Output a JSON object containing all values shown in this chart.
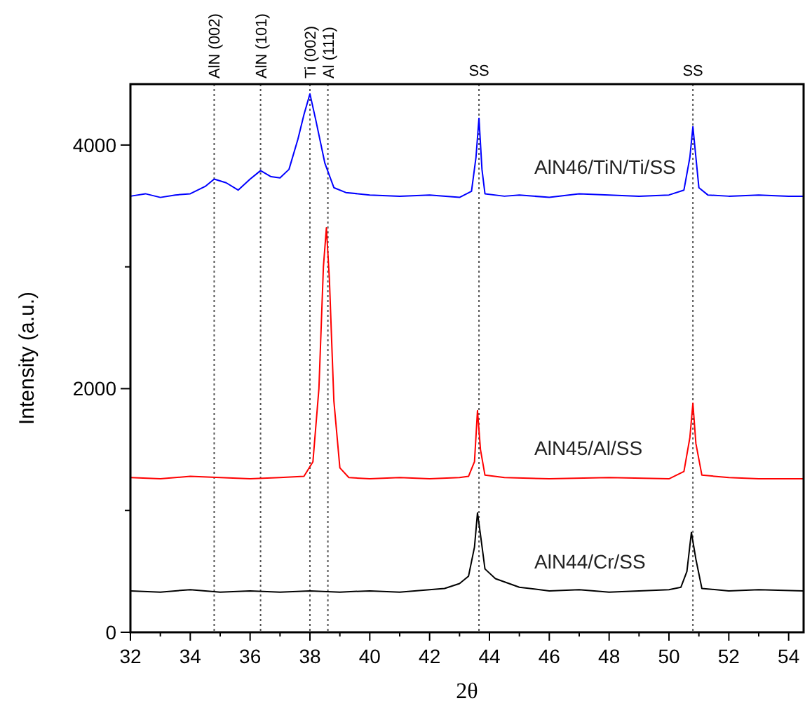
{
  "chart_data": {
    "type": "line",
    "xlabel": "2θ",
    "ylabel": "Intensity (a.u.)",
    "xlim": [
      32,
      54.5
    ],
    "ylim": [
      0,
      4500
    ],
    "xticks": [
      32,
      {
        "value": 33,
        "label": null
      },
      34,
      {
        "value": 35,
        "label": null
      },
      36,
      {
        "value": 37,
        "label": null
      },
      38,
      {
        "value": 39,
        "label": null
      },
      40,
      {
        "value": 41,
        "label": null
      },
      42,
      {
        "value": 43,
        "label": null
      },
      44,
      {
        "value": 45,
        "label": null
      },
      46,
      {
        "value": 47,
        "label": null
      },
      48,
      {
        "value": 49,
        "label": null
      },
      50,
      {
        "value": 51,
        "label": null
      },
      52,
      {
        "value": 53,
        "label": null
      },
      54
    ],
    "yticks": [
      0,
      {
        "value": 1000,
        "label": null
      },
      2000,
      {
        "value": 3000,
        "label": null
      },
      4000
    ],
    "grid": false,
    "marker": "none",
    "line_style": "solid",
    "ref_lines": [
      {
        "axis": "x",
        "value": 34.8,
        "label": "AlN (002)"
      },
      {
        "axis": "x",
        "value": 36.35,
        "label": "AlN (101)"
      },
      {
        "axis": "x",
        "value": 38.0,
        "label": "Ti (002)"
      },
      {
        "axis": "x",
        "value": 38.6,
        "label": "Al (111)"
      },
      {
        "axis": "x",
        "value": 43.65,
        "label": "SS"
      },
      {
        "axis": "x",
        "value": 50.8,
        "label": "SS"
      }
    ],
    "series": [
      {
        "name": "AlN46/TiN/Ti/SS",
        "color": "#0000ff",
        "x": [
          32,
          32.5,
          33,
          33.5,
          34,
          34.5,
          34.8,
          35.2,
          35.6,
          36,
          36.35,
          36.7,
          37,
          37.3,
          37.6,
          37.8,
          38,
          38.2,
          38.5,
          38.8,
          39.2,
          40,
          41,
          42,
          43,
          43.4,
          43.55,
          43.65,
          43.75,
          43.85,
          44.5,
          45,
          46,
          47,
          48,
          49,
          50,
          50.5,
          50.7,
          50.8,
          50.9,
          51,
          51.3,
          52,
          53,
          54,
          54.5
        ],
        "values": [
          3580,
          3600,
          3570,
          3590,
          3600,
          3660,
          3720,
          3690,
          3630,
          3720,
          3790,
          3740,
          3730,
          3800,
          4050,
          4250,
          4420,
          4200,
          3850,
          3650,
          3610,
          3590,
          3580,
          3590,
          3570,
          3620,
          3900,
          4220,
          3800,
          3600,
          3580,
          3590,
          3570,
          3600,
          3590,
          3580,
          3590,
          3630,
          3900,
          4150,
          3900,
          3650,
          3590,
          3580,
          3590,
          3580,
          3580
        ]
      },
      {
        "name": "AlN45/Al/SS",
        "color": "#ff0000",
        "x": [
          32,
          33,
          34,
          35,
          36,
          37,
          37.8,
          38.1,
          38.3,
          38.45,
          38.55,
          38.65,
          38.8,
          39,
          39.3,
          40,
          41,
          42,
          43,
          43.3,
          43.5,
          43.6,
          43.7,
          43.85,
          44.5,
          46,
          48,
          50,
          50.5,
          50.7,
          50.8,
          50.9,
          51.1,
          52,
          53,
          54.5
        ],
        "values": [
          1270,
          1260,
          1280,
          1270,
          1260,
          1270,
          1280,
          1400,
          2000,
          3000,
          3320,
          2900,
          1900,
          1350,
          1270,
          1260,
          1270,
          1260,
          1270,
          1280,
          1400,
          1820,
          1500,
          1290,
          1270,
          1260,
          1270,
          1260,
          1320,
          1600,
          1880,
          1550,
          1290,
          1270,
          1260,
          1260
        ]
      },
      {
        "name": "AlN44/Cr/SS",
        "color": "#000000",
        "x": [
          32,
          33,
          34,
          35,
          36,
          37,
          38,
          39,
          40,
          41,
          42,
          42.5,
          43,
          43.3,
          43.5,
          43.6,
          43.7,
          43.85,
          44.2,
          45,
          46,
          47,
          48,
          49,
          50,
          50.4,
          50.6,
          50.75,
          50.9,
          51.1,
          52,
          53,
          54.5
        ],
        "values": [
          340,
          330,
          350,
          330,
          340,
          330,
          340,
          330,
          340,
          330,
          350,
          360,
          400,
          460,
          700,
          980,
          800,
          520,
          440,
          370,
          340,
          350,
          330,
          340,
          350,
          370,
          500,
          820,
          600,
          360,
          340,
          350,
          340
        ]
      }
    ]
  }
}
